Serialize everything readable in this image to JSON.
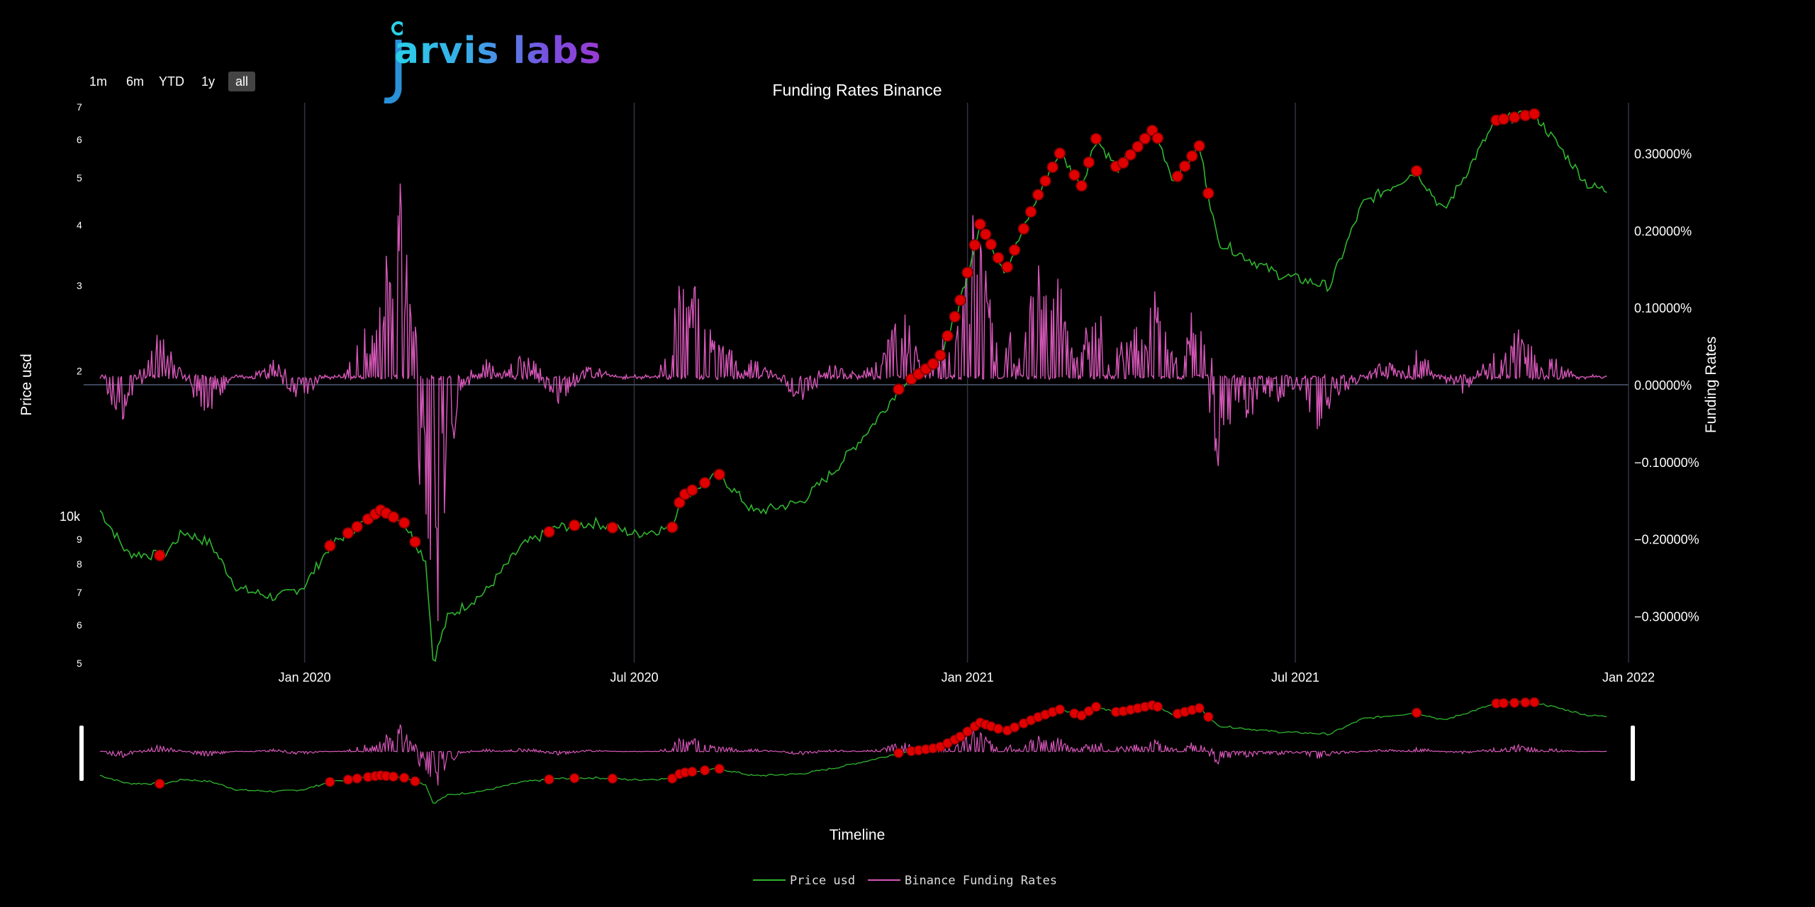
{
  "logo": {
    "text": "arvis labs",
    "name": "jarvis labs"
  },
  "range_selector": {
    "buttons": [
      "1m",
      "6m",
      "YTD",
      "1y",
      "all"
    ],
    "active": "all"
  },
  "colors": {
    "price": "#2fb52f",
    "funding": "#d657b8",
    "markers": "#e00000",
    "grid": "#2f3340",
    "zero_line": "#3c4658"
  },
  "chart_data": {
    "type": "line",
    "title": "Funding Rates Binance",
    "xlabel": "Timeline",
    "ylabel_left": "Price usd",
    "ylabel_right": "Funding Rates",
    "y_left_scale": "log",
    "y_left_ticks": [
      "5",
      "6",
      "7",
      "8",
      "9",
      "10k",
      "2",
      "3",
      "4",
      "5",
      "6",
      "7"
    ],
    "y_right_ticks": [
      "0.30000%",
      "0.20000%",
      "0.10000%",
      "0.00000%",
      "−0.10000%",
      "−0.20000%",
      "−0.30000%"
    ],
    "y_right_range": [
      -0.33,
      0.33
    ],
    "x_ticks": [
      "Jan 2020",
      "Jul 2020",
      "Jan 2021",
      "Jul 2021",
      "Jan 2022"
    ],
    "x_range": [
      "2019-09-01",
      "2022-01-01"
    ],
    "grid": "vertical",
    "legend_position": "bottom-center",
    "series": [
      {
        "name": "Price usd",
        "axis": "left",
        "points": [
          [
            "2019-09-10",
            10300
          ],
          [
            "2019-09-25",
            8400
          ],
          [
            "2019-10-15",
            8300
          ],
          [
            "2019-10-26",
            9300
          ],
          [
            "2019-11-10",
            8800
          ],
          [
            "2019-11-25",
            7100
          ],
          [
            "2019-12-17",
            6800
          ],
          [
            "2020-01-01",
            7200
          ],
          [
            "2020-01-15",
            8700
          ],
          [
            "2020-02-12",
            10300
          ],
          [
            "2020-02-25",
            9700
          ],
          [
            "2020-03-08",
            8100
          ],
          [
            "2020-03-12",
            5000
          ],
          [
            "2020-03-20",
            6200
          ],
          [
            "2020-04-10",
            7000
          ],
          [
            "2020-04-30",
            8700
          ],
          [
            "2020-05-20",
            9500
          ],
          [
            "2020-06-10",
            9700
          ],
          [
            "2020-07-01",
            9200
          ],
          [
            "2020-07-22",
            9500
          ],
          [
            "2020-07-27",
            11000
          ],
          [
            "2020-08-17",
            12200
          ],
          [
            "2020-09-05",
            10200
          ],
          [
            "2020-10-01",
            10700
          ],
          [
            "2020-10-20",
            12500
          ],
          [
            "2020-11-10",
            15500
          ],
          [
            "2020-11-25",
            18500
          ],
          [
            "2020-12-16",
            21000
          ],
          [
            "2020-12-27",
            27000
          ],
          [
            "2021-01-08",
            40000
          ],
          [
            "2021-01-22",
            32000
          ],
          [
            "2021-02-09",
            46000
          ],
          [
            "2021-02-21",
            56000
          ],
          [
            "2021-03-05",
            48000
          ],
          [
            "2021-03-13",
            60000
          ],
          [
            "2021-03-25",
            52000
          ],
          [
            "2021-04-14",
            63000
          ],
          [
            "2021-04-25",
            49000
          ],
          [
            "2021-05-09",
            58000
          ],
          [
            "2021-05-19",
            37000
          ],
          [
            "2021-06-08",
            33500
          ],
          [
            "2021-06-22",
            31500
          ],
          [
            "2021-07-20",
            29800
          ],
          [
            "2021-08-07",
            44000
          ],
          [
            "2021-09-06",
            51500
          ],
          [
            "2021-09-21",
            42500
          ],
          [
            "2021-10-20",
            65500
          ],
          [
            "2021-11-10",
            67500
          ],
          [
            "2021-11-25",
            57000
          ],
          [
            "2021-12-10",
            48000
          ],
          [
            "2021-12-20",
            47000
          ]
        ]
      },
      {
        "name": "Binance Funding Rates",
        "axis": "right",
        "baseline": 0.01,
        "spikes": [
          [
            "2019-09-22",
            -0.05
          ],
          [
            "2019-10-13",
            0.065
          ],
          [
            "2019-11-08",
            -0.04
          ],
          [
            "2019-12-15",
            0.03
          ],
          [
            "2019-12-29",
            -0.02
          ],
          [
            "2020-02-05",
            0.09
          ],
          [
            "2020-02-15",
            0.1
          ],
          [
            "2020-02-20",
            0.3
          ],
          [
            "2020-02-25",
            0.12
          ],
          [
            "2020-03-08",
            0.03
          ],
          [
            "2020-03-13",
            -0.3
          ],
          [
            "2020-03-16",
            -0.06
          ],
          [
            "2020-03-22",
            -0.04
          ],
          [
            "2020-04-10",
            0.03
          ],
          [
            "2020-05-01",
            0.04
          ],
          [
            "2020-05-20",
            -0.02
          ],
          [
            "2020-06-07",
            0.025
          ],
          [
            "2020-07-28",
            0.14
          ],
          [
            "2020-08-04",
            0.12
          ],
          [
            "2020-08-10",
            0.08
          ],
          [
            "2020-08-20",
            0.05
          ],
          [
            "2020-09-05",
            0.035
          ],
          [
            "2020-10-01",
            -0.02
          ],
          [
            "2020-10-20",
            0.03
          ],
          [
            "2020-11-15",
            0.04
          ],
          [
            "2020-11-25",
            0.1
          ],
          [
            "2020-12-20",
            0.06
          ],
          [
            "2021-01-05",
            0.2
          ],
          [
            "2021-01-08",
            0.16
          ],
          [
            "2021-01-12",
            0.02
          ],
          [
            "2021-01-25",
            0.06
          ],
          [
            "2021-02-10",
            0.15
          ],
          [
            "2021-02-20",
            0.12
          ],
          [
            "2021-03-05",
            0.04
          ],
          [
            "2021-03-13",
            0.1
          ],
          [
            "2021-04-02",
            0.09
          ],
          [
            "2021-04-14",
            0.11
          ],
          [
            "2021-04-20",
            0.02
          ],
          [
            "2021-05-05",
            0.09
          ],
          [
            "2021-05-10",
            0.06
          ],
          [
            "2021-05-20",
            -0.09
          ],
          [
            "2021-06-05",
            -0.04
          ],
          [
            "2021-06-22",
            -0.03
          ],
          [
            "2021-07-14",
            -0.05
          ],
          [
            "2021-07-25",
            -0.015
          ],
          [
            "2021-08-20",
            0.03
          ],
          [
            "2021-09-06",
            0.045
          ],
          [
            "2021-10-01",
            -0.01
          ],
          [
            "2021-10-20",
            0.04
          ],
          [
            "2021-11-01",
            0.07
          ],
          [
            "2021-11-08",
            0.045
          ],
          [
            "2021-11-20",
            0.035
          ],
          [
            "2021-12-10",
            0.01
          ]
        ]
      }
    ],
    "markers": {
      "description_hidden": true,
      "dates": [
        "2019-10-13",
        "2020-01-15",
        "2020-01-25",
        "2020-01-30",
        "2020-02-05",
        "2020-02-09",
        "2020-02-12",
        "2020-02-15",
        "2020-02-19",
        "2020-02-25",
        "2020-03-02",
        "2020-05-15",
        "2020-05-29",
        "2020-06-19",
        "2020-07-22",
        "2020-07-26",
        "2020-07-29",
        "2020-08-02",
        "2020-08-09",
        "2020-08-17",
        "2020-11-24",
        "2020-12-01",
        "2020-12-05",
        "2020-12-09",
        "2020-12-13",
        "2020-12-17",
        "2020-12-21",
        "2020-12-25",
        "2020-12-28",
        "2021-01-01",
        "2021-01-05",
        "2021-01-08",
        "2021-01-11",
        "2021-01-14",
        "2021-01-18",
        "2021-01-23",
        "2021-01-27",
        "2021-02-01",
        "2021-02-05",
        "2021-02-09",
        "2021-02-13",
        "2021-02-17",
        "2021-02-21",
        "2021-03-01",
        "2021-03-05",
        "2021-03-09",
        "2021-03-13",
        "2021-03-24",
        "2021-03-28",
        "2021-04-01",
        "2021-04-05",
        "2021-04-09",
        "2021-04-13",
        "2021-04-16",
        "2021-04-27",
        "2021-05-01",
        "2021-05-05",
        "2021-05-09",
        "2021-05-14",
        "2021-09-06",
        "2021-10-20",
        "2021-10-24",
        "2021-10-30",
        "2021-11-05",
        "2021-11-10"
      ]
    }
  },
  "legend": [
    {
      "label": "Price usd",
      "color": "#2fb52f"
    },
    {
      "label": "Binance Funding Rates",
      "color": "#d657b8"
    }
  ]
}
